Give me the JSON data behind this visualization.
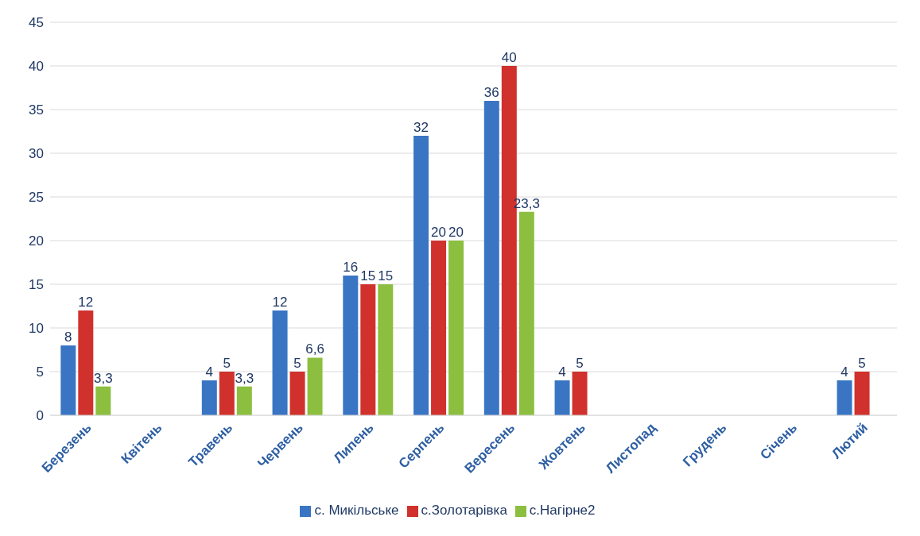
{
  "chart_data": {
    "type": "bar",
    "categories": [
      "Березень",
      "Квітень",
      "Травень",
      "Червень",
      "Липень",
      "Серпень",
      "Вересень",
      "Жовтень",
      "Листопад",
      "Грудень",
      "Січень",
      "Лютий"
    ],
    "series": [
      {
        "name": "с. Микільське",
        "color": "#3a75c4",
        "values": [
          8,
          null,
          4,
          12,
          16,
          32,
          36,
          4,
          null,
          null,
          null,
          4
        ],
        "value_labels": [
          "8",
          null,
          "4",
          "12",
          "16",
          "32",
          "36",
          "4",
          null,
          null,
          null,
          "4"
        ]
      },
      {
        "name": "с.Золотарівка",
        "color": "#d0312d",
        "values": [
          12,
          null,
          5,
          5,
          15,
          20,
          40,
          5,
          null,
          null,
          null,
          5
        ],
        "value_labels": [
          "12",
          null,
          "5",
          "5",
          "15",
          "20",
          "40",
          "5",
          null,
          null,
          null,
          "5"
        ]
      },
      {
        "name": "с.Нагірне2",
        "color": "#8cbf3f",
        "values": [
          3.3,
          null,
          3.3,
          6.6,
          15,
          20,
          23.3,
          null,
          null,
          null,
          null,
          null
        ],
        "value_labels": [
          "3,3",
          null,
          "3,3",
          "6,6",
          "15",
          "20",
          "23,3",
          null,
          null,
          null,
          null,
          null
        ]
      }
    ],
    "ylim": [
      0,
      45
    ],
    "yticks": [
      0,
      5,
      10,
      15,
      20,
      25,
      30,
      35,
      40,
      45
    ],
    "grid": "y",
    "legend": "bottom"
  }
}
